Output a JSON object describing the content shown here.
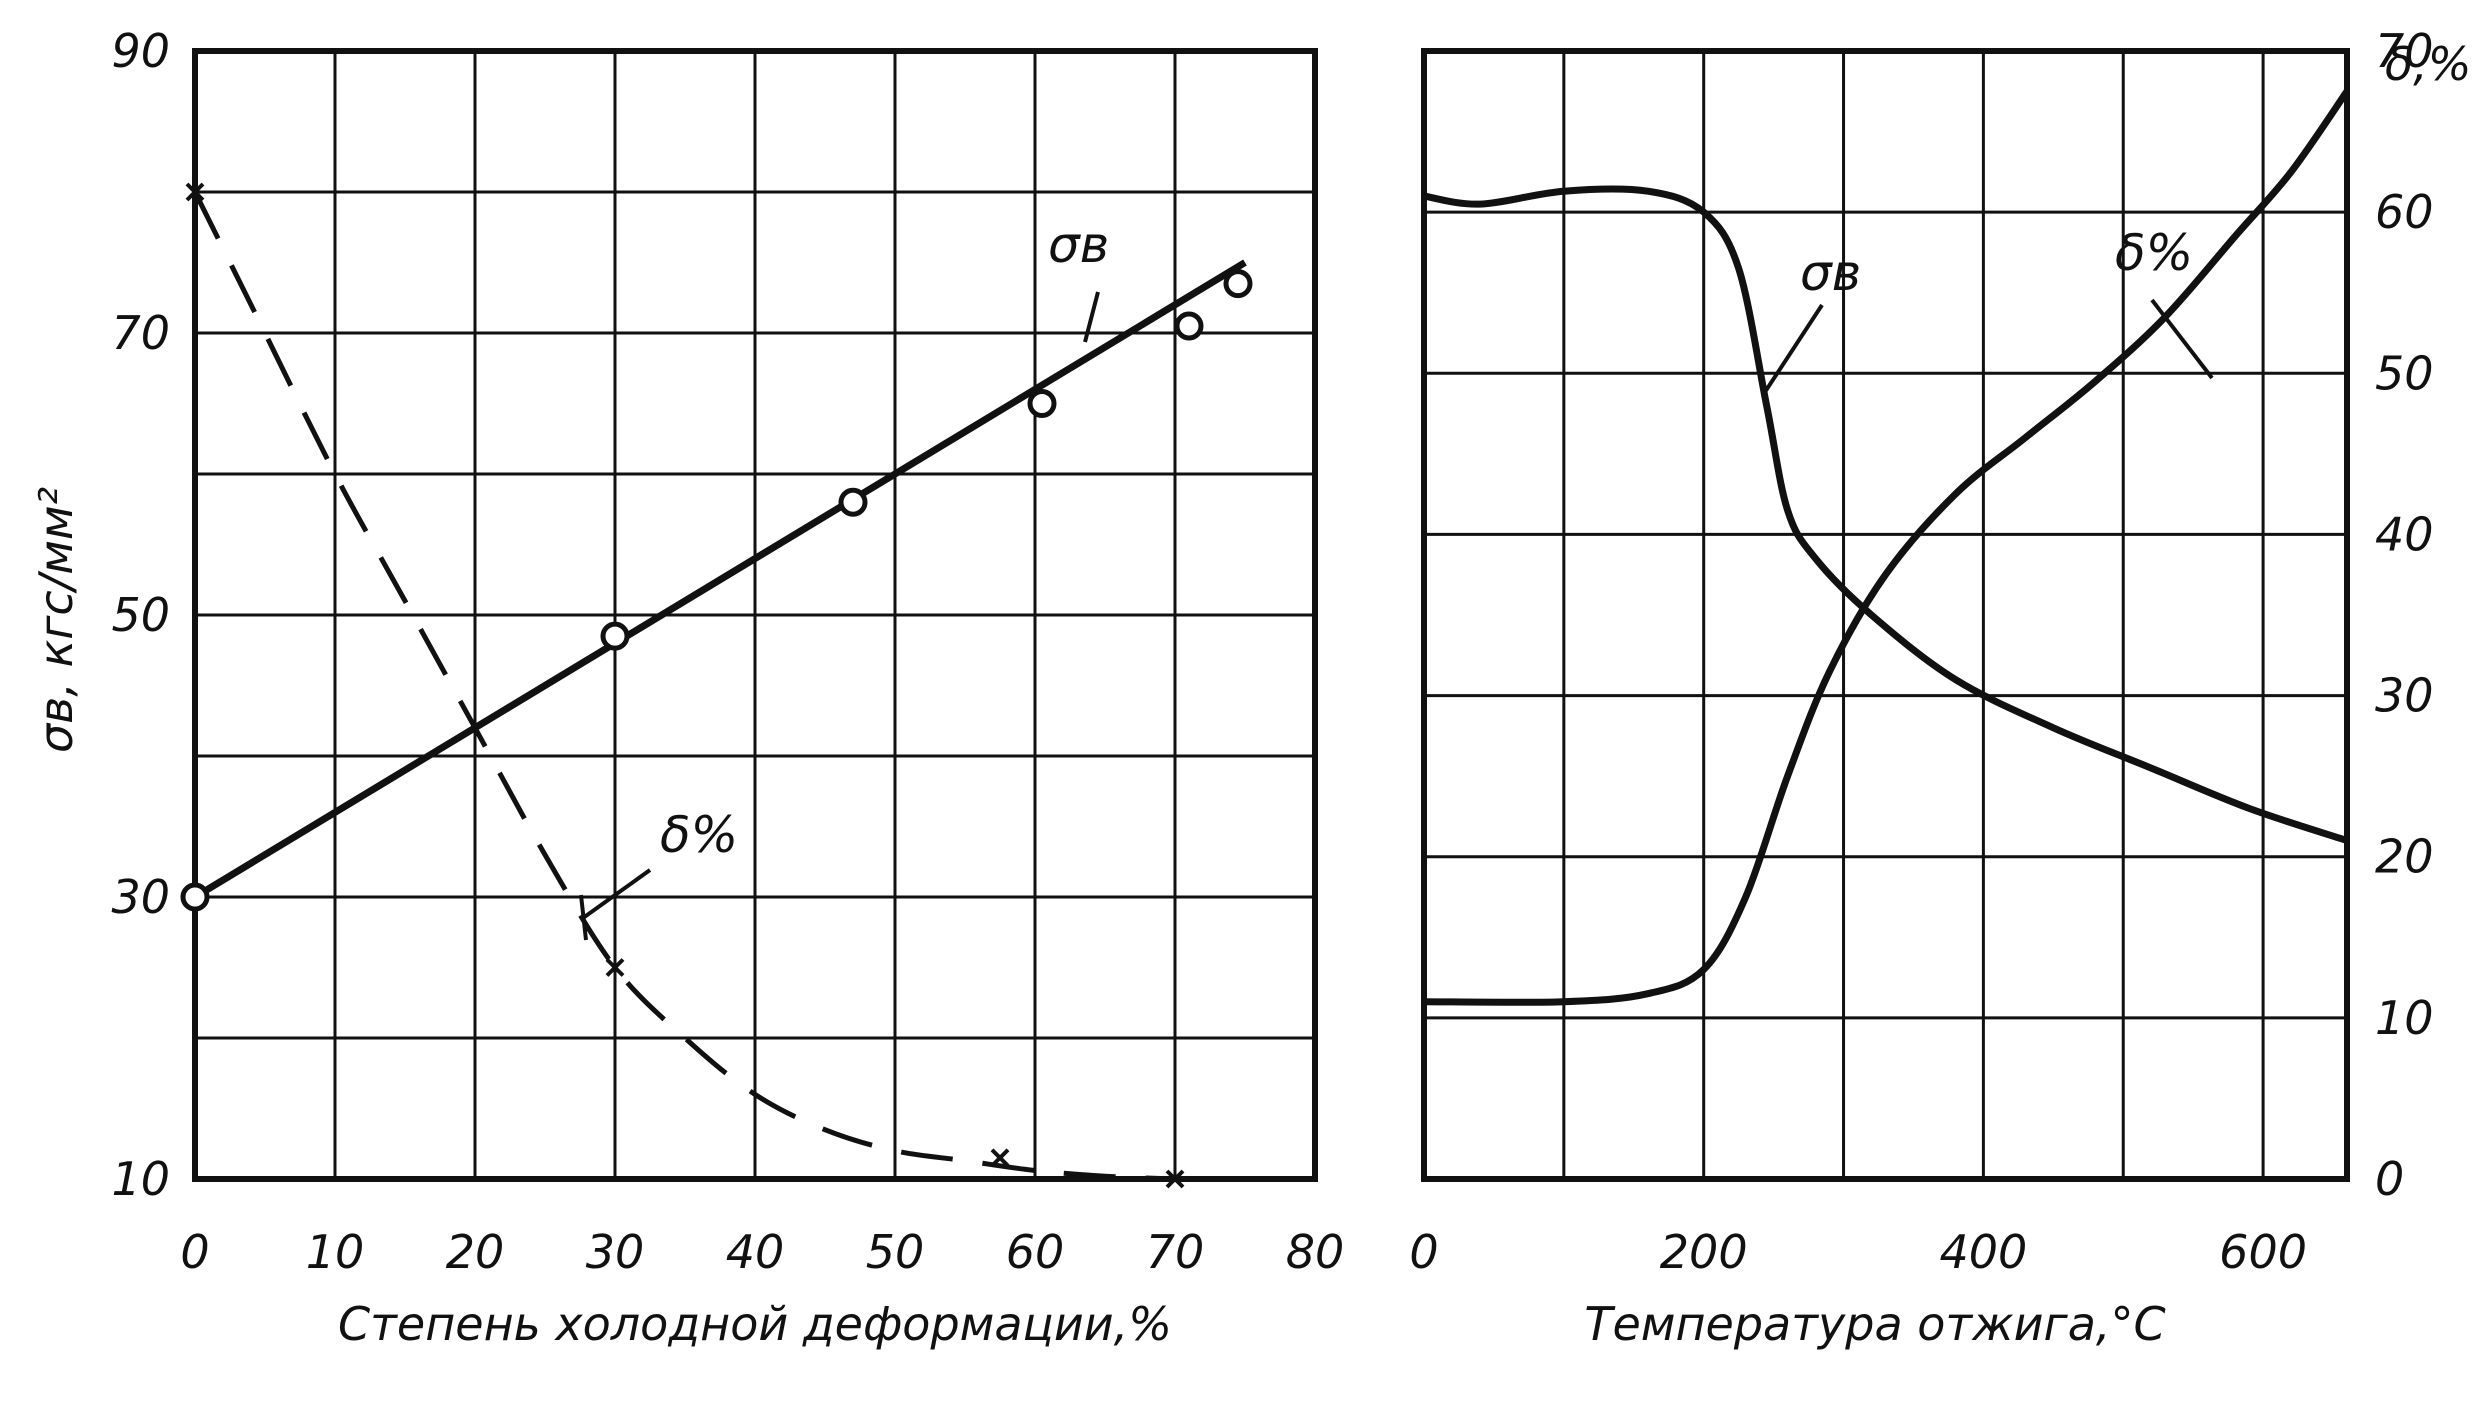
{
  "chart_data": [
    {
      "type": "line",
      "xlabel": "Степень холодной деформации,%",
      "ylabel": "σв, кгс/мм²",
      "xlim": [
        0,
        80
      ],
      "ylim": [
        10,
        90
      ],
      "x_ticks": [
        "0",
        "10",
        "20",
        "30",
        "40",
        "50",
        "60",
        "70",
        "80"
      ],
      "y_ticks": [
        "90",
        "70",
        "50",
        "30",
        "10"
      ],
      "grid": true,
      "series": [
        {
          "name": "σв",
          "style": "solid",
          "line": [
            {
              "x": 0,
              "y": 30
            },
            {
              "x": 75,
              "y": 75
            }
          ],
          "points": [
            {
              "x": 0,
              "y": 30
            },
            {
              "x": 30,
              "y": 48.5
            },
            {
              "x": 47,
              "y": 58
            },
            {
              "x": 60.5,
              "y": 65
            },
            {
              "x": 71,
              "y": 70.5
            },
            {
              "x": 74.5,
              "y": 73.5
            }
          ]
        },
        {
          "name": "δ%",
          "style": "dashed",
          "line": [
            {
              "x": 0,
              "y": 80
            },
            {
              "x": 5,
              "y": 70
            },
            {
              "x": 10,
              "y": 60
            },
            {
              "x": 15,
              "y": 51
            },
            {
              "x": 20,
              "y": 42
            },
            {
              "x": 25,
              "y": 33
            },
            {
              "x": 30,
              "y": 25
            },
            {
              "x": 35,
              "y": 20
            },
            {
              "x": 40,
              "y": 16
            },
            {
              "x": 45,
              "y": 13.5
            },
            {
              "x": 50,
              "y": 12
            },
            {
              "x": 55,
              "y": 11.3
            },
            {
              "x": 60,
              "y": 10.6
            },
            {
              "x": 65,
              "y": 10.2
            },
            {
              "x": 70,
              "y": 10
            }
          ],
          "points": [
            {
              "x": 0,
              "y": 80
            },
            {
              "x": 30,
              "y": 25
            },
            {
              "x": 57.5,
              "y": 11.5
            },
            {
              "x": 70,
              "y": 10
            }
          ]
        }
      ]
    },
    {
      "type": "line",
      "xlabel": "Температура отжига,°С",
      "ylabel_right": "δ,%",
      "xlim": [
        0,
        660
      ],
      "ylim_right": [
        0,
        70
      ],
      "x_ticks": [
        "0",
        "200",
        "400",
        "600"
      ],
      "y_ticks_right": [
        "70",
        "60",
        "50",
        "40",
        "30",
        "20",
        "10",
        "0"
      ],
      "grid": true,
      "series": [
        {
          "name": "σв",
          "style": "solid",
          "line": [
            {
              "x": 0,
              "y": 61
            },
            {
              "x": 40,
              "y": 60.5
            },
            {
              "x": 100,
              "y": 61.3
            },
            {
              "x": 160,
              "y": 61.3
            },
            {
              "x": 200,
              "y": 60
            },
            {
              "x": 225,
              "y": 56.5
            },
            {
              "x": 245,
              "y": 48
            },
            {
              "x": 260,
              "y": 41.5
            },
            {
              "x": 280,
              "y": 38.5
            },
            {
              "x": 320,
              "y": 35
            },
            {
              "x": 380,
              "y": 31
            },
            {
              "x": 450,
              "y": 28
            },
            {
              "x": 520,
              "y": 25.5
            },
            {
              "x": 590,
              "y": 23
            },
            {
              "x": 660,
              "y": 21
            }
          ]
        },
        {
          "name": "δ%",
          "style": "solid",
          "line": [
            {
              "x": 0,
              "y": 11
            },
            {
              "x": 100,
              "y": 11
            },
            {
              "x": 160,
              "y": 11.5
            },
            {
              "x": 200,
              "y": 13
            },
            {
              "x": 230,
              "y": 17.5
            },
            {
              "x": 260,
              "y": 25
            },
            {
              "x": 290,
              "y": 31.5
            },
            {
              "x": 330,
              "y": 37.5
            },
            {
              "x": 380,
              "y": 42.5
            },
            {
              "x": 430,
              "y": 46
            },
            {
              "x": 480,
              "y": 49.5
            },
            {
              "x": 530,
              "y": 53.5
            },
            {
              "x": 580,
              "y": 58.5
            },
            {
              "x": 620,
              "y": 62.5
            },
            {
              "x": 660,
              "y": 67.5
            }
          ]
        }
      ]
    }
  ]
}
